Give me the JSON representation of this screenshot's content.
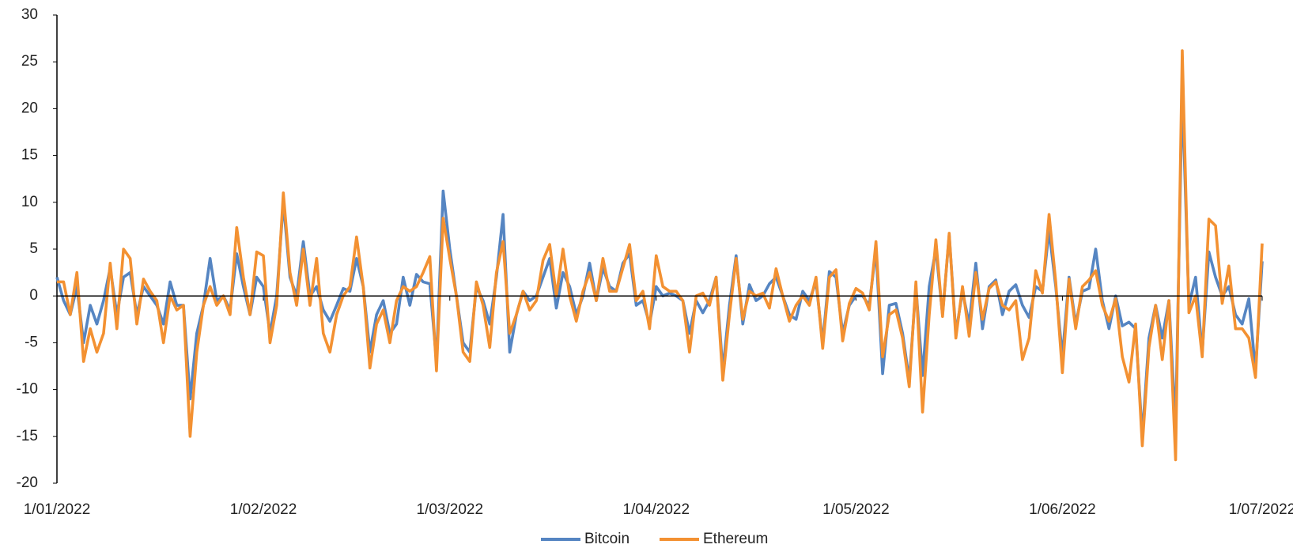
{
  "chart_data": {
    "type": "line",
    "categories": [
      "1/01/2022",
      "2/01/2022",
      "3/01/2022",
      "4/01/2022",
      "5/01/2022",
      "6/01/2022",
      "7/01/2022",
      "8/01/2022",
      "9/01/2022",
      "10/01/2022",
      "11/01/2022",
      "12/01/2022",
      "13/01/2022",
      "14/01/2022",
      "15/01/2022",
      "16/01/2022",
      "17/01/2022",
      "18/01/2022",
      "19/01/2022",
      "20/01/2022",
      "21/01/2022",
      "22/01/2022",
      "23/01/2022",
      "24/01/2022",
      "25/01/2022",
      "26/01/2022",
      "27/01/2022",
      "28/01/2022",
      "29/01/2022",
      "30/01/2022",
      "31/01/2022",
      "1/02/2022",
      "2/02/2022",
      "3/02/2022",
      "4/02/2022",
      "5/02/2022",
      "6/02/2022",
      "7/02/2022",
      "8/02/2022",
      "9/02/2022",
      "10/02/2022",
      "11/02/2022",
      "12/02/2022",
      "13/02/2022",
      "14/02/2022",
      "15/02/2022",
      "16/02/2022",
      "17/02/2022",
      "18/02/2022",
      "19/02/2022",
      "20/02/2022",
      "21/02/2022",
      "22/02/2022",
      "23/02/2022",
      "24/02/2022",
      "25/02/2022",
      "26/02/2022",
      "27/02/2022",
      "28/02/2022",
      "1/03/2022",
      "2/03/2022",
      "3/03/2022",
      "4/03/2022",
      "5/03/2022",
      "6/03/2022",
      "7/03/2022",
      "8/03/2022",
      "9/03/2022",
      "10/03/2022",
      "11/03/2022",
      "12/03/2022",
      "13/03/2022",
      "14/03/2022",
      "15/03/2022",
      "16/03/2022",
      "17/03/2022",
      "18/03/2022",
      "19/03/2022",
      "20/03/2022",
      "21/03/2022",
      "22/03/2022",
      "23/03/2022",
      "24/03/2022",
      "25/03/2022",
      "26/03/2022",
      "27/03/2022",
      "28/03/2022",
      "29/03/2022",
      "30/03/2022",
      "31/03/2022",
      "1/04/2022",
      "2/04/2022",
      "3/04/2022",
      "4/04/2022",
      "5/04/2022",
      "6/04/2022",
      "7/04/2022",
      "8/04/2022",
      "9/04/2022",
      "10/04/2022",
      "11/04/2022",
      "12/04/2022",
      "13/04/2022",
      "14/04/2022",
      "15/04/2022",
      "16/04/2022",
      "17/04/2022",
      "18/04/2022",
      "19/04/2022",
      "20/04/2022",
      "21/04/2022",
      "22/04/2022",
      "23/04/2022",
      "24/04/2022",
      "25/04/2022",
      "26/04/2022",
      "27/04/2022",
      "28/04/2022",
      "29/04/2022",
      "30/04/2022",
      "1/05/2022",
      "2/05/2022",
      "3/05/2022",
      "4/05/2022",
      "5/05/2022",
      "6/05/2022",
      "7/05/2022",
      "8/05/2022",
      "9/05/2022",
      "10/05/2022",
      "11/05/2022",
      "12/05/2022",
      "13/05/2022",
      "14/05/2022",
      "15/05/2022",
      "16/05/2022",
      "17/05/2022",
      "18/05/2022",
      "19/05/2022",
      "20/05/2022",
      "21/05/2022",
      "22/05/2022",
      "23/05/2022",
      "24/05/2022",
      "25/05/2022",
      "26/05/2022",
      "27/05/2022",
      "28/05/2022",
      "29/05/2022",
      "30/05/2022",
      "31/05/2022",
      "1/06/2022",
      "2/06/2022",
      "3/06/2022",
      "4/06/2022",
      "5/06/2022",
      "6/06/2022",
      "7/06/2022",
      "8/06/2022",
      "9/06/2022",
      "10/06/2022",
      "11/06/2022",
      "12/06/2022",
      "13/06/2022",
      "14/06/2022",
      "15/06/2022",
      "16/06/2022",
      "17/06/2022",
      "18/06/2022",
      "19/06/2022",
      "20/06/2022",
      "21/06/2022",
      "22/06/2022",
      "23/06/2022",
      "24/06/2022",
      "25/06/2022",
      "26/06/2022",
      "27/06/2022",
      "28/06/2022",
      "29/06/2022",
      "30/06/2022",
      "1/07/2022"
    ],
    "xticks": [
      "1/01/2022",
      "1/02/2022",
      "1/03/2022",
      "1/04/2022",
      "1/05/2022",
      "1/06/2022",
      "1/07/2022"
    ],
    "ylim": [
      -20,
      30
    ],
    "yticks": [
      -20,
      -15,
      -10,
      -5,
      0,
      5,
      10,
      15,
      20,
      25,
      30
    ],
    "legend": "bottom",
    "series": [
      {
        "name": "Bitcoin",
        "color": "#5585c2",
        "values": [
          2,
          -0.5,
          -2,
          1,
          -5,
          -1,
          -3,
          -0.5,
          3,
          -2,
          2,
          2.5,
          -2,
          1,
          0,
          -1,
          -3,
          1.5,
          -1,
          -1,
          -11,
          -4,
          -1,
          4,
          -0.5,
          0,
          -1.5,
          4.5,
          1,
          -2,
          2,
          1,
          -4,
          0,
          10,
          2,
          0,
          5.8,
          0,
          1,
          -1.5,
          -2.7,
          -1,
          0.8,
          0.5,
          4,
          1,
          -6,
          -2,
          -0.5,
          -4,
          -3,
          2,
          -1,
          2.3,
          1.5,
          1.3,
          -7,
          11.2,
          5,
          0,
          -5,
          -6,
          1,
          -0.5,
          -3,
          2,
          8.7,
          -6,
          -2,
          0.5,
          -0.5,
          0,
          2,
          4,
          -1.3,
          2.5,
          1,
          -2,
          0,
          3.5,
          -0.5,
          3,
          1,
          0.5,
          3.5,
          4.5,
          -1,
          -0.5,
          -3,
          1,
          0,
          0.3,
          0,
          -0.5,
          -4,
          -0.5,
          -1.8,
          -0.5,
          2,
          -8,
          -1,
          4.3,
          -3,
          1.2,
          -0.5,
          0,
          1.3,
          2,
          0,
          -2,
          -2.5,
          0.5,
          -0.5,
          1.5,
          -5,
          2.6,
          2,
          -4,
          -1,
          0,
          0,
          -1,
          5,
          -8.3,
          -1,
          -0.8,
          -4,
          -9,
          1,
          -8.5,
          1,
          5,
          -2,
          6.5,
          -4,
          0.5,
          -3,
          3.5,
          -3.5,
          1,
          1.7,
          -2,
          0.5,
          1.2,
          -1,
          -2.3,
          1,
          0.5,
          7,
          1,
          -6.5,
          2,
          -3,
          0.5,
          0.8,
          5,
          -0.5,
          -3.5,
          0,
          -3.2,
          -2.8,
          -3.5,
          -15,
          -4.5,
          -1,
          -4.5,
          -0.5,
          -14,
          22,
          -1,
          2,
          -6,
          4.7,
          2,
          0,
          1,
          -2,
          -3,
          -0.3,
          -8,
          3.7
        ]
      },
      {
        "name": "Ethereum",
        "color": "#f39132",
        "values": [
          1.5,
          1.5,
          -2,
          2.5,
          -7,
          -3.5,
          -6,
          -4,
          3.5,
          -3.5,
          5,
          4,
          -3,
          1.8,
          0.5,
          -0.5,
          -5,
          0,
          -1.5,
          -1,
          -15,
          -6,
          -1,
          1,
          -1,
          0,
          -2,
          7.3,
          2,
          -2,
          4.7,
          4.3,
          -5,
          -1,
          11,
          2.5,
          -1,
          5,
          -1,
          4,
          -4,
          -6,
          -2,
          0,
          1,
          6.3,
          1,
          -7.7,
          -3,
          -1.5,
          -5,
          -0.5,
          1,
          0.5,
          1,
          2.5,
          4.2,
          -8,
          8.3,
          4,
          0,
          -6,
          -7,
          1.5,
          -1,
          -5.5,
          2.5,
          5.8,
          -4,
          -2,
          0.5,
          -1.5,
          -0.5,
          3.8,
          5.5,
          0,
          5,
          0,
          -2.7,
          0.5,
          2.5,
          -0.5,
          4,
          0.5,
          0.5,
          3,
          5.5,
          -0.5,
          0.5,
          -3.5,
          4.3,
          1,
          0.5,
          0.5,
          -0.5,
          -6,
          0,
          0.3,
          -1,
          2,
          -9,
          -2,
          4,
          -2.5,
          0.5,
          0,
          0.3,
          -1.3,
          2.9,
          0,
          -2.7,
          -1,
          0,
          -1,
          2,
          -5.6,
          2,
          2.8,
          -4.8,
          -0.8,
          0.8,
          0.3,
          -1.5,
          5.8,
          -6.5,
          -2,
          -1.5,
          -4.5,
          -9.7,
          1.5,
          -12.4,
          -2,
          6,
          -2.2,
          6.7,
          -4.5,
          1,
          -4.3,
          2.5,
          -2.5,
          0.8,
          1.5,
          -1,
          -1.5,
          -0.5,
          -6.8,
          -4.5,
          2.7,
          0.3,
          8.7,
          1.5,
          -8.2,
          1.8,
          -3.5,
          1,
          1.7,
          2.7,
          -1,
          -2.7,
          -0.3,
          -6.5,
          -9.2,
          -3,
          -16,
          -5.5,
          -1,
          -6.8,
          -0.5,
          -17.5,
          26.2,
          -1.8,
          0,
          -6.5,
          8.2,
          7.5,
          -0.8,
          3.2,
          -3.5,
          -3.5,
          -4.5,
          -8.7,
          5.6
        ]
      }
    ]
  }
}
